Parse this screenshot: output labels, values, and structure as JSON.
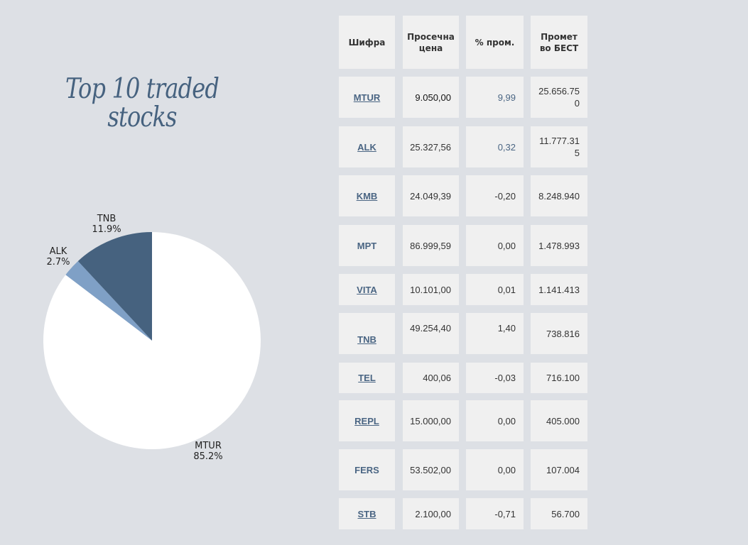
{
  "title": [
    "Top 10 traded",
    "stocks"
  ],
  "colors": {
    "background": "#dde0e5",
    "cell": "#f0f0f0",
    "accent": "#4a6583",
    "slice_mtur": "#ffffff",
    "slice_alk": "#7fa0c6",
    "slice_tnb": "#46627f"
  },
  "table": {
    "headers": [
      "Шифра",
      "Просечна цена",
      "% пром.",
      "Промет во БЕСТ"
    ],
    "rows": [
      {
        "ticker": "MTUR",
        "price": "9.050,00",
        "change": "9,99",
        "turnover": "25.656.750",
        "link": true
      },
      {
        "ticker": "ALK",
        "price": "25.327,56",
        "change": "0,32",
        "turnover": "11.777.315",
        "link": true
      },
      {
        "ticker": "KMB",
        "price": "24.049,39",
        "change": "-0,20",
        "turnover": "8.248.940",
        "link": true
      },
      {
        "ticker": "MPT",
        "price": "86.999,59",
        "change": "0,00",
        "turnover": "1.478.993",
        "link": false
      },
      {
        "ticker": "VITA",
        "price": "10.101,00",
        "change": "0,01",
        "turnover": "1.141.413",
        "link": true
      },
      {
        "ticker": "TNB",
        "price": "49.254,40",
        "change": "1,40",
        "turnover": "738.816",
        "link": true
      },
      {
        "ticker": "TEL",
        "price": "400,06",
        "change": "-0,03",
        "turnover": "716.100",
        "link": true
      },
      {
        "ticker": "REPL",
        "price": "15.000,00",
        "change": "0,00",
        "turnover": "405.000",
        "link": true
      },
      {
        "ticker": "FERS",
        "price": "53.502,00",
        "change": "0,00",
        "turnover": "107.004",
        "link": false
      },
      {
        "ticker": "STB",
        "price": "2.100,00",
        "change": "-0,71",
        "turnover": "56.700",
        "link": true
      }
    ]
  },
  "chart_data": {
    "type": "pie",
    "slices": [
      {
        "label": "MTUR",
        "value": 85.2,
        "display": "85.2%"
      },
      {
        "label": "ALK",
        "value": 2.7,
        "display": "2.7%"
      },
      {
        "label": "TNB",
        "value": 11.9,
        "display": "11.9%"
      }
    ],
    "start": "12 o'clock",
    "direction": "clockwise"
  }
}
